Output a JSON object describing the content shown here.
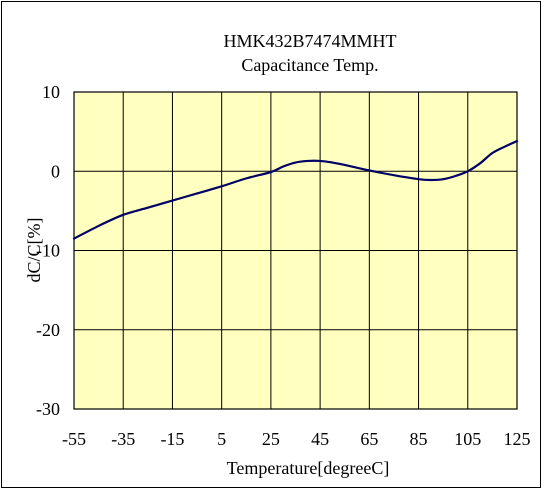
{
  "chart_data": {
    "type": "line",
    "title": "HMK432B7474MMHT",
    "subtitle": "Capacitance Temp.",
    "xlabel": "Temperature[degreeC]",
    "ylabel": "dC/C[%]",
    "xlim": [
      -55,
      125
    ],
    "ylim": [
      -30,
      10
    ],
    "x_ticks": [
      -55,
      -35,
      -15,
      5,
      25,
      45,
      65,
      85,
      105,
      125
    ],
    "y_ticks": [
      10,
      0,
      -10,
      -20,
      -30
    ],
    "grid": true,
    "plot_background": "#FFFFC0",
    "series": [
      {
        "color": "#000066",
        "x": [
          -55,
          -45,
          -35,
          -25,
          -15,
          -5,
          5,
          15,
          25,
          30,
          35,
          40,
          45,
          50,
          55,
          65,
          75,
          85,
          90,
          95,
          100,
          105,
          110,
          115,
          120,
          125
        ],
        "y": [
          -8.5,
          -6.9,
          -5.5,
          -4.6,
          -3.7,
          -2.8,
          -1.9,
          -0.9,
          -0.1,
          0.6,
          1.1,
          1.3,
          1.3,
          1.1,
          0.8,
          0.1,
          -0.5,
          -1.0,
          -1.1,
          -1.0,
          -0.6,
          0.0,
          1.0,
          2.3,
          3.1,
          3.8
        ]
      }
    ]
  }
}
